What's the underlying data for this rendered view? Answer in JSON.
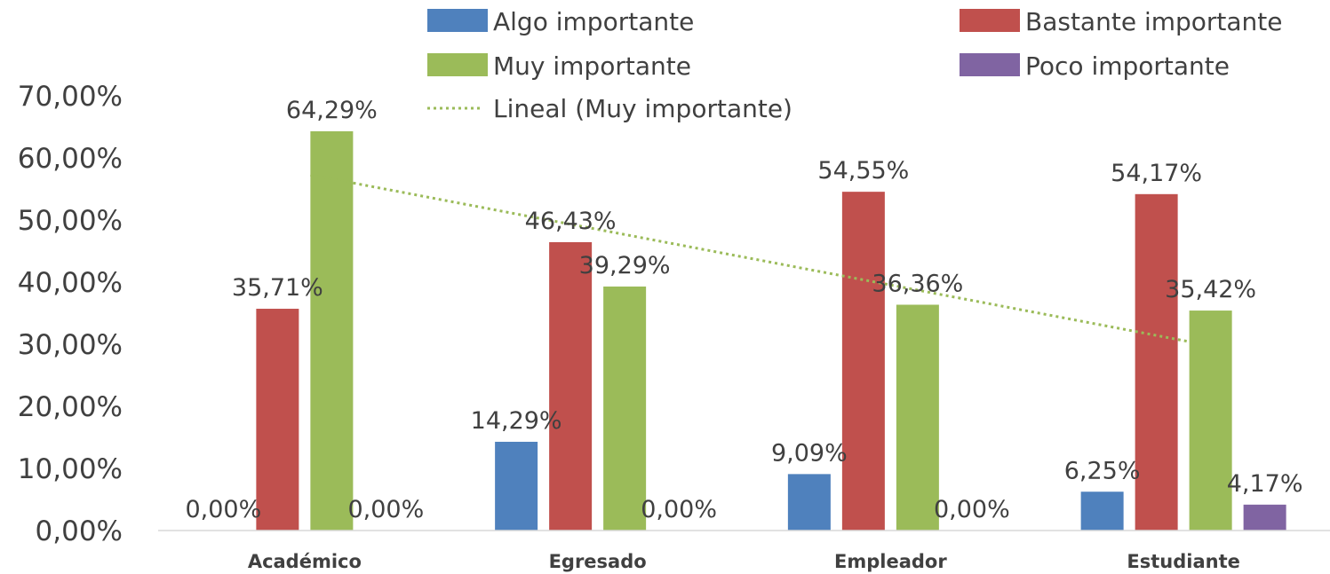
{
  "chart_data": {
    "type": "bar",
    "categories": [
      "Académico",
      "Egresado",
      "Empleador",
      "Estudiante"
    ],
    "series": [
      {
        "name": "Algo importante",
        "color": "#4F81BD",
        "values": [
          0,
          14.29,
          9.09,
          6.25
        ],
        "labels": [
          "0,00%",
          "14,29%",
          "9,09%",
          "6,25%"
        ]
      },
      {
        "name": "Bastante importante",
        "color": "#C0504D",
        "values": [
          35.71,
          46.43,
          54.55,
          54.17
        ],
        "labels": [
          "35,71%",
          "46,43%",
          "54,55%",
          "54,17%"
        ]
      },
      {
        "name": "Muy importante",
        "color": "#9BBB59",
        "values": [
          64.29,
          39.29,
          36.36,
          35.42
        ],
        "labels": [
          "64,29%",
          "39,29%",
          "36,36%",
          "35,42%"
        ]
      },
      {
        "name": "Poco importante",
        "color": "#8064A2",
        "values": [
          0,
          0,
          0,
          4.17
        ],
        "labels": [
          "0,00%",
          "0,00%",
          "0,00%",
          "4,17%"
        ]
      }
    ],
    "trendline": {
      "name": "Lineal (Muy importante)",
      "series": "Muy importante",
      "type": "linear",
      "style": "dotted",
      "color": "#9BBB59"
    },
    "yticks": [
      "0,00%",
      "10,00%",
      "20,00%",
      "30,00%",
      "40,00%",
      "50,00%",
      "60,00%",
      "70,00%"
    ],
    "ylim": [
      0,
      70
    ],
    "legend_position": "top",
    "grid": false
  }
}
